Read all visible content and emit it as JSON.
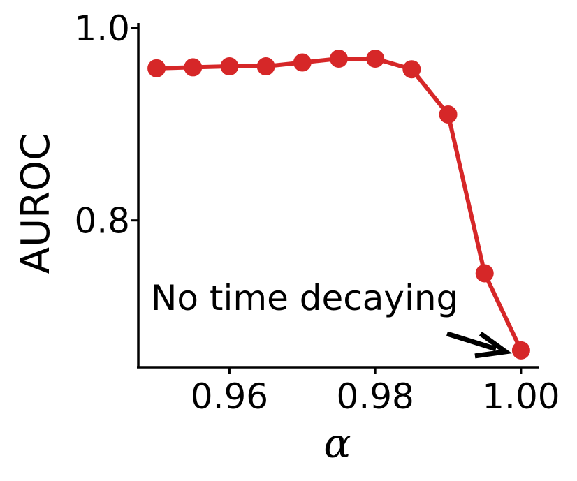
{
  "chart_data": {
    "type": "line",
    "xlabel": "α",
    "ylabel": "AUROC",
    "xlim": [
      0.9475,
      1.0025
    ],
    "ylim": [
      0.6475,
      1.005
    ],
    "xticks": [
      0.96,
      0.98,
      1.0
    ],
    "xtick_labels": [
      "0.96",
      "0.98",
      "1.00"
    ],
    "yticks": [
      0.8,
      1.0
    ],
    "ytick_labels": [
      "0.8",
      "1.0"
    ],
    "grid": false,
    "series": [
      {
        "color": "#d62728",
        "x": [
          0.95,
          0.955,
          0.96,
          0.965,
          0.97,
          0.975,
          0.98,
          0.985,
          0.99,
          0.995,
          1.0
        ],
        "y": [
          0.958,
          0.959,
          0.96,
          0.96,
          0.964,
          0.968,
          0.968,
          0.957,
          0.91,
          0.745,
          0.665
        ]
      }
    ],
    "annotations": [
      {
        "text": "No time decaying",
        "arrow_to": {
          "x": 1.0,
          "y": 0.665
        }
      }
    ]
  }
}
